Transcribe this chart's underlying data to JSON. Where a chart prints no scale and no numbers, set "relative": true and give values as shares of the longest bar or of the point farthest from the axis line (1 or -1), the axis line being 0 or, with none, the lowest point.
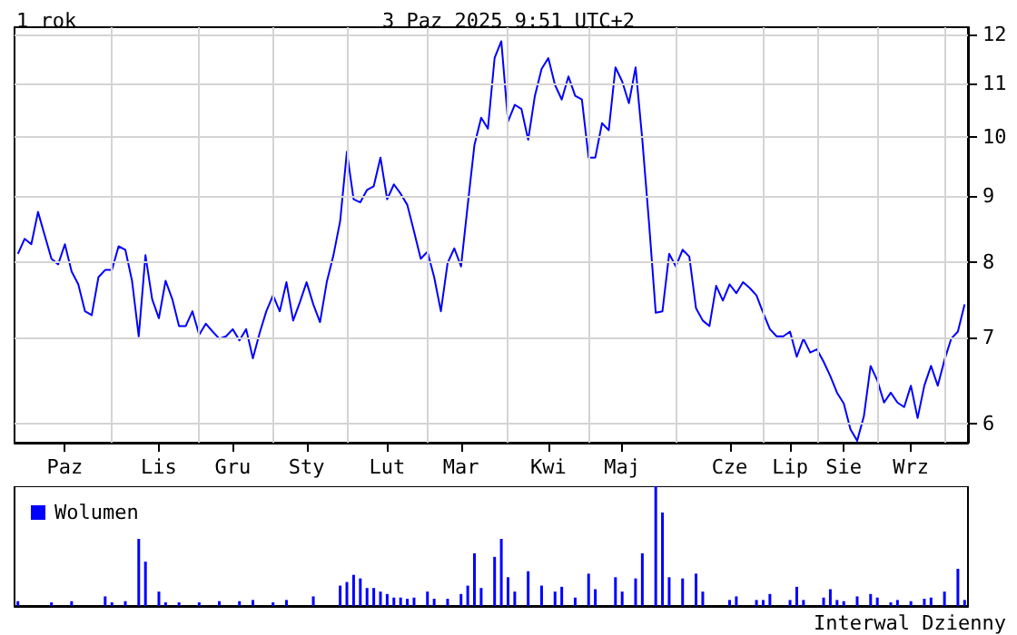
{
  "chart_data": [
    {
      "type": "line",
      "title": "1 rok",
      "subtitle": "3 Paz 2025 9:51 UTC+2",
      "color": "#0000ff",
      "log": true,
      "grid": true,
      "ylim": [
        5.8,
        12.16
      ],
      "yticks": [
        6,
        7,
        8,
        9,
        10,
        11,
        12
      ],
      "categories": [
        null,
        null,
        null,
        null,
        null,
        null,
        null,
        "Paz",
        null,
        null,
        null,
        null,
        null,
        null,
        null,
        null,
        null,
        null,
        null,
        null,
        null,
        "Lis",
        null,
        null,
        null,
        null,
        null,
        null,
        null,
        null,
        null,
        null,
        "Gru",
        null,
        null,
        null,
        null,
        null,
        null,
        null,
        null,
        null,
        null,
        "Sty",
        null,
        null,
        null,
        null,
        null,
        null,
        null,
        null,
        null,
        null,
        null,
        "Lut",
        null,
        null,
        null,
        null,
        null,
        null,
        null,
        null,
        null,
        null,
        "Mar",
        null,
        null,
        null,
        null,
        null,
        null,
        null,
        null,
        null,
        null,
        null,
        null,
        "Kwi",
        null,
        null,
        null,
        null,
        null,
        null,
        null,
        null,
        null,
        null,
        "Maj",
        null,
        null,
        null,
        null,
        null,
        null,
        null,
        null,
        null,
        null,
        null,
        null,
        null,
        null,
        null,
        "Cze",
        null,
        null,
        null,
        null,
        null,
        null,
        null,
        null,
        "Lip",
        null,
        null,
        null,
        null,
        null,
        null,
        null,
        "Sie",
        null,
        null,
        null,
        null,
        null,
        null,
        null,
        null,
        null,
        "Wrz",
        null,
        null,
        null,
        null,
        null,
        null,
        null,
        null
      ],
      "values": [
        8.12,
        8.34,
        8.26,
        8.75,
        8.39,
        8.05,
        7.97,
        8.26,
        7.87,
        7.69,
        7.33,
        7.28,
        7.79,
        7.89,
        7.89,
        8.23,
        8.18,
        7.74,
        7.01,
        8.1,
        7.49,
        7.24,
        7.74,
        7.49,
        7.14,
        7.14,
        7.33,
        7.03,
        7.17,
        7.07,
        6.98,
        7.01,
        7.1,
        6.96,
        7.1,
        6.74,
        7.05,
        7.33,
        7.54,
        7.33,
        7.72,
        7.21,
        7.45,
        7.72,
        7.42,
        7.19,
        7.72,
        8.1,
        8.61,
        9.74,
        8.95,
        8.9,
        9.1,
        9.16,
        9.64,
        8.95,
        9.19,
        9.04,
        8.86,
        8.45,
        8.05,
        8.15,
        7.79,
        7.33,
        7.99,
        8.2,
        7.94,
        8.86,
        9.86,
        10.35,
        10.15,
        11.51,
        11.86,
        10.28,
        10.59,
        10.51,
        9.95,
        10.76,
        11.29,
        11.51,
        10.97,
        10.69,
        11.14,
        10.76,
        10.69,
        9.64,
        9.64,
        10.25,
        10.12,
        11.32,
        11.04,
        10.62,
        11.32,
        9.95,
        8.58,
        7.31,
        7.33,
        8.12,
        7.94,
        8.18,
        8.08,
        7.37,
        7.21,
        7.14,
        7.67,
        7.47,
        7.69,
        7.57,
        7.72,
        7.64,
        7.54,
        7.31,
        7.1,
        7.01,
        7.01,
        7.07,
        6.76,
        6.98,
        6.81,
        6.85,
        6.7,
        6.53,
        6.34,
        6.22,
        5.94,
        5.82,
        6.08,
        6.65,
        6.48,
        6.23,
        6.34,
        6.23,
        6.18,
        6.42,
        6.06,
        6.42,
        6.65,
        6.42,
        6.72,
        6.98,
        7.07,
        7.42
      ]
    },
    {
      "type": "bar",
      "relative": true,
      "legend": "top left",
      "annotations": [
        "Interwal Dzienny"
      ],
      "categories": [
        null,
        null,
        null,
        null,
        null,
        null,
        null,
        null,
        null,
        null,
        null,
        null,
        null,
        null,
        null,
        null,
        null,
        null,
        null,
        null,
        null,
        null,
        null,
        null,
        null,
        null,
        null,
        null,
        null,
        null,
        null,
        null,
        null,
        null,
        null,
        null,
        null,
        null,
        null,
        null,
        null,
        null,
        null,
        null,
        null,
        null,
        null,
        null,
        null,
        null,
        null,
        null,
        null,
        null,
        null,
        null,
        null,
        null,
        null,
        null,
        null,
        null,
        null,
        null,
        null,
        null,
        null,
        null,
        null,
        null,
        null,
        null,
        null,
        null,
        null,
        null,
        null,
        null,
        null,
        null,
        null,
        null,
        null,
        null,
        null,
        null,
        null,
        null,
        null,
        null,
        null,
        null,
        null,
        null,
        null,
        null,
        null,
        null,
        null,
        null,
        null,
        null,
        null,
        null,
        null,
        null,
        null,
        null,
        null,
        null,
        null,
        null,
        null,
        null,
        null,
        null,
        null,
        null,
        null,
        null,
        null,
        null,
        null,
        null,
        null,
        null,
        null,
        null,
        null,
        null,
        null,
        null,
        null,
        null,
        null,
        null,
        null,
        null,
        null,
        null,
        null,
        null
      ],
      "series": [
        {
          "name": "Wolumen",
          "color": "#0000ff",
          "values": [
            0.04,
            null,
            null,
            null,
            null,
            0.03,
            null,
            null,
            0.04,
            null,
            null,
            null,
            null,
            0.08,
            0.03,
            null,
            0.04,
            null,
            0.56,
            0.37,
            null,
            0.12,
            0.03,
            null,
            0.03,
            null,
            null,
            0.03,
            null,
            null,
            0.04,
            null,
            null,
            0.04,
            null,
            0.05,
            null,
            null,
            0.03,
            null,
            0.05,
            null,
            null,
            null,
            0.08,
            null,
            null,
            null,
            0.17,
            0.2,
            0.26,
            0.23,
            0.15,
            0.15,
            0.12,
            0.1,
            0.07,
            0.07,
            0.06,
            0.07,
            null,
            0.12,
            0.06,
            null,
            0.06,
            null,
            0.1,
            0.17,
            0.44,
            0.15,
            null,
            0.41,
            0.56,
            0.24,
            0.12,
            null,
            0.29,
            null,
            0.17,
            null,
            0.12,
            0.16,
            null,
            0.07,
            null,
            0.27,
            0.14,
            null,
            null,
            0.24,
            0.12,
            null,
            0.23,
            0.44,
            null,
            1.0,
            0.78,
            0.24,
            null,
            0.23,
            null,
            0.27,
            0.12,
            null,
            null,
            null,
            0.05,
            0.08,
            null,
            null,
            0.05,
            0.05,
            0.1,
            null,
            null,
            0.05,
            0.16,
            0.05,
            null,
            null,
            0.07,
            0.14,
            0.05,
            0.04,
            null,
            0.08,
            null,
            0.1,
            0.07,
            null,
            0.03,
            0.05,
            null,
            0.04,
            null,
            0.06,
            0.07,
            null,
            0.12,
            null,
            0.31,
            0.05
          ]
        }
      ]
    }
  ]
}
